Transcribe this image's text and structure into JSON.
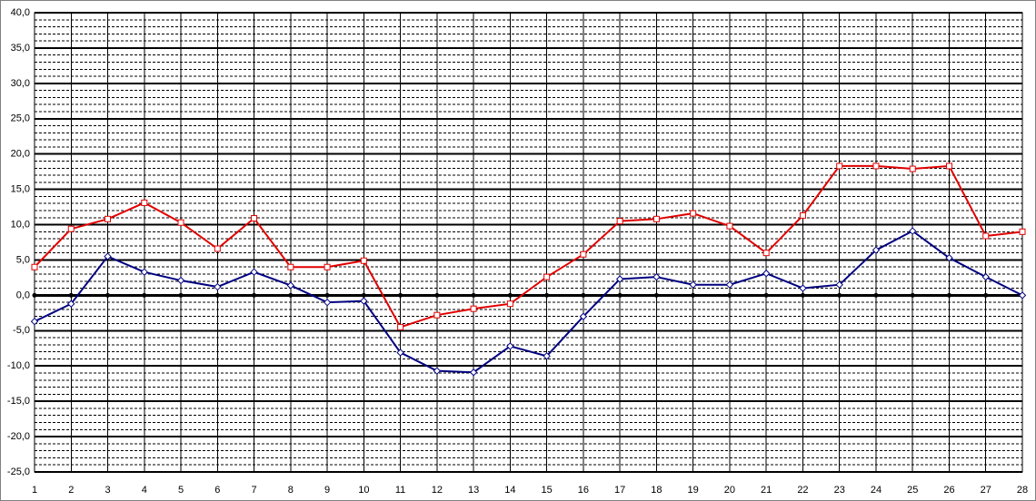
{
  "chart_data": {
    "type": "line",
    "x": [
      1,
      2,
      3,
      4,
      5,
      6,
      7,
      8,
      9,
      10,
      11,
      12,
      13,
      14,
      15,
      16,
      17,
      18,
      19,
      20,
      21,
      22,
      23,
      24,
      25,
      26,
      27,
      28
    ],
    "xlim": [
      1,
      28
    ],
    "xticks": [
      1,
      2,
      3,
      4,
      5,
      6,
      7,
      8,
      9,
      10,
      11,
      12,
      13,
      14,
      15,
      16,
      17,
      18,
      19,
      20,
      21,
      22,
      23,
      24,
      25,
      26,
      27,
      28
    ],
    "ylim": [
      -25,
      40
    ],
    "yticks": [
      {
        "value": -25,
        "label": "-25,0"
      },
      {
        "value": -20,
        "label": "-20,0"
      },
      {
        "value": -15,
        "label": "-15,0"
      },
      {
        "value": -10,
        "label": "-10,0"
      },
      {
        "value": -5,
        "label": "-5,0"
      },
      {
        "value": 0,
        "label": "0,0"
      },
      {
        "value": 5,
        "label": "5,0"
      },
      {
        "value": 10,
        "label": "10,0"
      },
      {
        "value": 15,
        "label": "15,0"
      },
      {
        "value": 20,
        "label": "20,0"
      },
      {
        "value": 25,
        "label": "25,0"
      },
      {
        "value": 30,
        "label": "30,0"
      },
      {
        "value": 35,
        "label": "35,0"
      },
      {
        "value": 40,
        "label": "40,0"
      }
    ],
    "grid": true,
    "minor_grid": true,
    "series": [
      {
        "color": "#e00000",
        "marker": "square",
        "values": [
          4.0,
          9.4,
          10.8,
          13.1,
          10.3,
          6.6,
          10.9,
          4.0,
          4.0,
          4.9,
          -4.5,
          -2.8,
          -1.9,
          -1.2,
          2.6,
          5.8,
          10.5,
          10.8,
          11.6,
          9.8,
          6.0,
          11.3,
          18.3,
          18.3,
          17.9,
          18.3,
          8.4,
          9.0
        ]
      },
      {
        "color": "#000080",
        "marker": "diamond",
        "values": [
          -3.7,
          -1.2,
          5.5,
          3.3,
          2.1,
          1.2,
          3.3,
          1.4,
          -1.0,
          -0.8,
          -8.1,
          -10.7,
          -10.9,
          -7.2,
          -8.6,
          -3.0,
          2.3,
          2.6,
          1.5,
          1.5,
          3.1,
          1.0,
          1.5,
          6.4,
          9.1,
          5.3,
          2.6,
          0.0
        ]
      }
    ]
  }
}
